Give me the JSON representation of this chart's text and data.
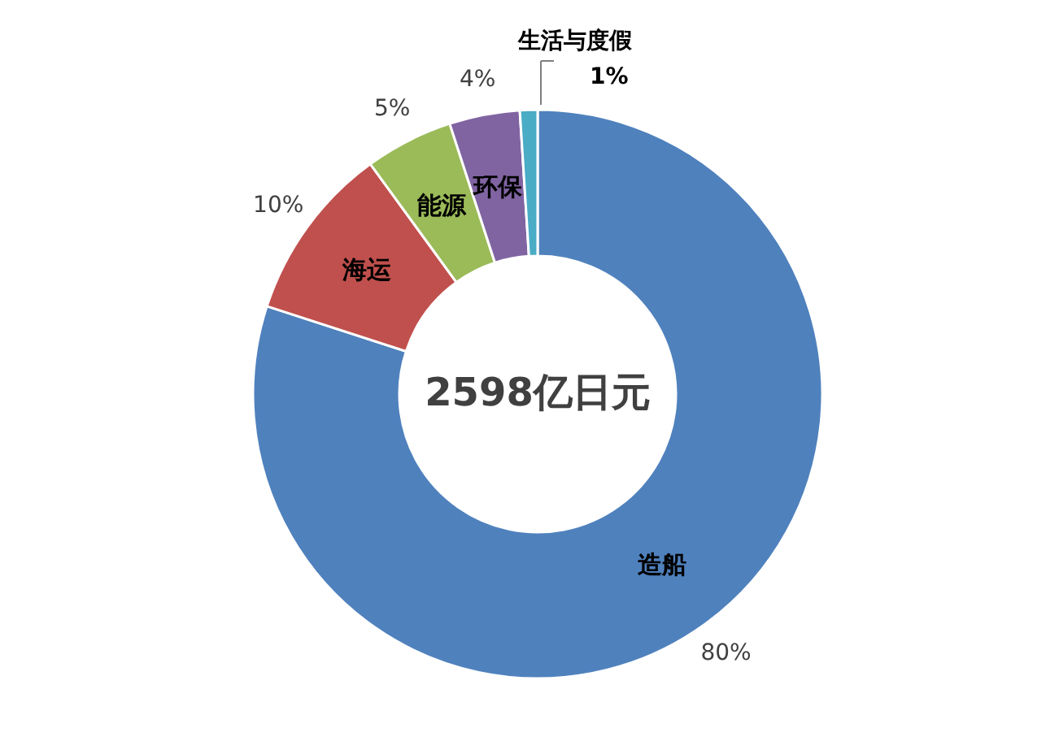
{
  "chart_data": {
    "type": "donut",
    "categories": [
      "造船",
      "海运",
      "能源",
      "环保",
      "生活与度假"
    ],
    "values": [
      80,
      10,
      5,
      4,
      1
    ],
    "value_labels": [
      "80%",
      "10%",
      "5%",
      "4%",
      "1%"
    ],
    "colors": [
      "#4f81bd",
      "#c0504d",
      "#9bbb59",
      "#8064a2",
      "#4bacc6"
    ],
    "annotations": [
      "2598亿日元"
    ]
  }
}
